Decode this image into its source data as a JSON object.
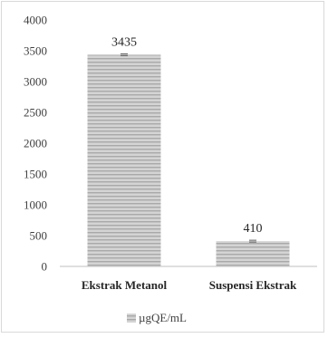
{
  "chart_data": {
    "type": "bar",
    "categories": [
      "Ekstrak Metanol",
      "Suspensi Ekstrak"
    ],
    "series": [
      {
        "name": "µgQE/mL",
        "values": [
          3435,
          410
        ]
      }
    ],
    "data_labels": [
      "3435",
      "410"
    ],
    "ylim": [
      0,
      4000
    ],
    "yticks": [
      0,
      500,
      1000,
      1500,
      2000,
      2500,
      3000,
      3500,
      4000
    ],
    "error_bars": true,
    "grid": false,
    "legend_position": "bottom",
    "colors": {
      "bar": "#c8c8c8",
      "bar_stripe": "#a6a6a6",
      "axis": "#bfbfbf",
      "error_bar": "#595959"
    }
  }
}
